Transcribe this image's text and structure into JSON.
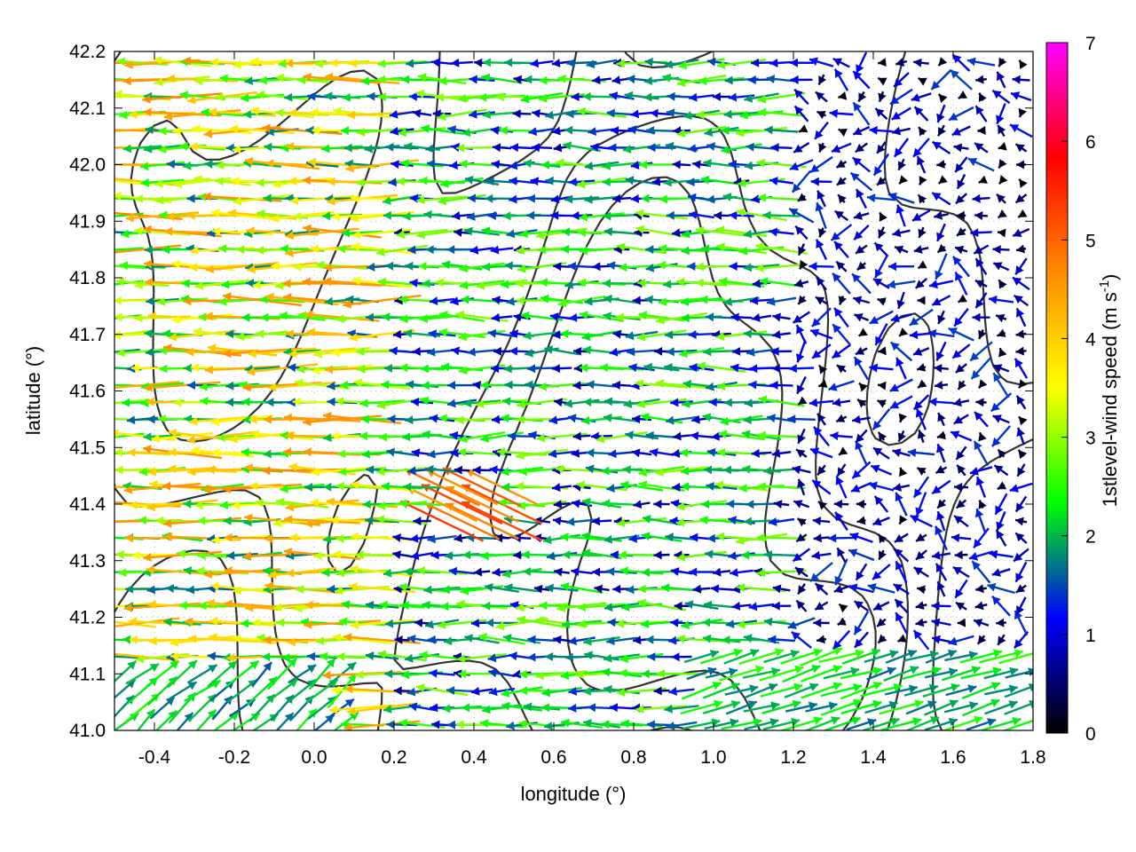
{
  "chart_data": {
    "type": "vector-field",
    "title": "",
    "xlabel": "longitude (°)",
    "ylabel": "latitude (°)",
    "xlim": [
      -0.5,
      1.8
    ],
    "ylim": [
      41.0,
      42.2
    ],
    "x_ticks": [
      "-0.4",
      "-0.2",
      "0.0",
      "0.2",
      "0.4",
      "0.6",
      "0.8",
      "1.0",
      "1.2",
      "1.4",
      "1.6",
      "1.8"
    ],
    "x_tick_values": [
      -0.4,
      -0.2,
      0.0,
      0.2,
      0.4,
      0.6,
      0.8,
      1.0,
      1.2,
      1.4,
      1.6,
      1.8
    ],
    "y_ticks": [
      "41.0",
      "41.1",
      "41.2",
      "41.3",
      "41.4",
      "41.5",
      "41.6",
      "41.7",
      "41.8",
      "41.9",
      "42.0",
      "42.1",
      "42.2"
    ],
    "y_tick_values": [
      41.0,
      41.1,
      41.2,
      41.3,
      41.4,
      41.5,
      41.6,
      41.7,
      41.8,
      41.9,
      42.0,
      42.1,
      42.2
    ],
    "grid": "dotted",
    "colorbar": {
      "label_main": "1stlevel-wind speed (m s",
      "label_exp": "-1",
      "label_close": ")",
      "range": [
        0,
        7
      ],
      "ticks": [
        "0",
        "1",
        "2",
        "3",
        "4",
        "5",
        "6",
        "7"
      ],
      "tick_values": [
        0,
        1,
        2,
        3,
        4,
        5,
        6,
        7
      ],
      "palette": [
        "#000000",
        "#0000ff",
        "#00ff00",
        "#ffff00",
        "#ff8c00",
        "#ff0000",
        "#ff00ff"
      ]
    },
    "contour_color": "#333333",
    "wind_regions": [
      {
        "region": "west, lon -0.5 to 0.2, lat 41.2 to 42.2",
        "direction": "westward",
        "speed_range": [
          1.5,
          4.8
        ]
      },
      {
        "region": "central, lon 0.2 to 1.2, lat 41.2 to 42.0",
        "direction": "westward",
        "speed_range": [
          0.8,
          3.0
        ]
      },
      {
        "region": "east, lon 1.2 to 1.8, lat 41.2 to 42.2",
        "direction": "variable",
        "speed_range": [
          0.0,
          1.5
        ]
      },
      {
        "region": "southeast, lon 1.0 to 1.8, lat 41.0 to 41.2",
        "direction": "eastward",
        "speed_range": [
          1.5,
          2.6
        ]
      },
      {
        "region": "southwest, lon -0.5 to 0.1, lat 41.0 to 41.15",
        "direction": "north-eastward",
        "speed_range": [
          1.5,
          2.5
        ]
      },
      {
        "region": "lon 0.3 to 0.5, lat 41.35 to 41.45",
        "direction": "north-westward",
        "speed_range": [
          4.5,
          5.5
        ]
      }
    ]
  }
}
